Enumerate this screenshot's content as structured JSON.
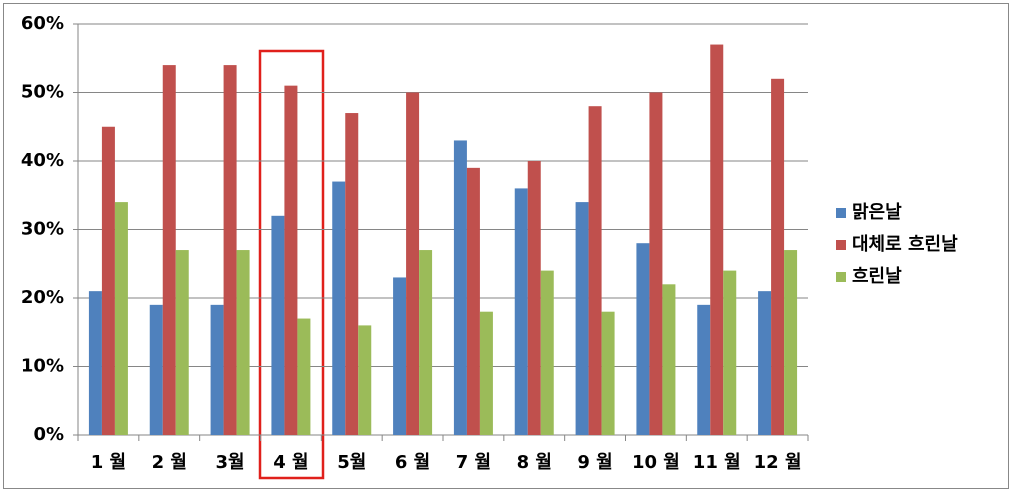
{
  "chart_data": {
    "type": "bar",
    "categories": [
      "1 월",
      "2 월",
      "3월",
      "4 월",
      "5월",
      "6 월",
      "7 월",
      "8 월",
      "9 월",
      "10 월",
      "11 월",
      "12 월"
    ],
    "series": [
      {
        "name": "맑은날",
        "color": "#4f81bd",
        "values": [
          21,
          19,
          19,
          32,
          37,
          23,
          43,
          36,
          34,
          28,
          19,
          21
        ]
      },
      {
        "name": "대체로 흐린날",
        "color": "#c0504d",
        "values": [
          45,
          54,
          54,
          51,
          47,
          50,
          39,
          40,
          48,
          50,
          57,
          52
        ]
      },
      {
        "name": "흐린날",
        "color": "#9bbb59",
        "values": [
          34,
          27,
          27,
          17,
          16,
          27,
          18,
          24,
          18,
          22,
          24,
          27
        ]
      }
    ],
    "ylim": [
      0,
      60
    ],
    "yticks": [
      {
        "value": 0,
        "label": "0%"
      },
      {
        "value": 10,
        "label": "10%"
      },
      {
        "value": 20,
        "label": "20%"
      },
      {
        "value": 30,
        "label": "30%"
      },
      {
        "value": 40,
        "label": "40%"
      },
      {
        "value": 50,
        "label": "50%"
      },
      {
        "value": 60,
        "label": "60%"
      }
    ],
    "grid": true,
    "legend": "right"
  }
}
